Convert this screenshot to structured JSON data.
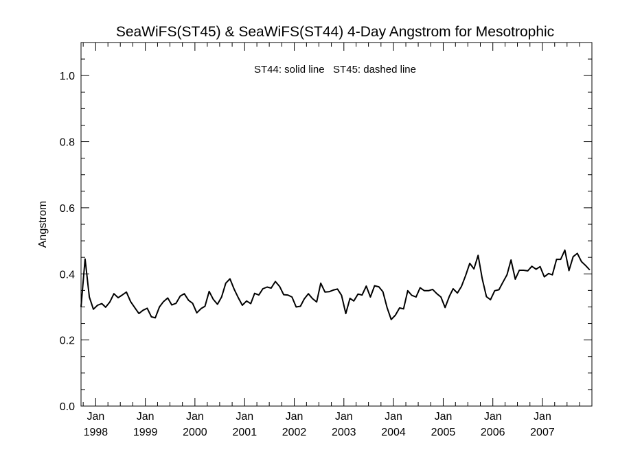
{
  "chart_data": {
    "type": "line",
    "title": "SeaWiFS(ST45) & SeaWiFS(ST44) 4-Day Angstrom for Mesotrophic",
    "annotation": "ST44: solid line   ST45: dashed line",
    "xlabel": "",
    "ylabel": "Angstrom",
    "ylim": [
      0.0,
      1.1
    ],
    "yticks": [
      "0.0",
      "0.2",
      "0.4",
      "0.6",
      "0.8",
      "1.0"
    ],
    "xlim": [
      "1997-09-15",
      "2007-12-31"
    ],
    "xticks": [
      {
        "date": "1998-01-01",
        "month": "Jan",
        "year": "1998"
      },
      {
        "date": "1999-01-01",
        "month": "Jan",
        "year": "1999"
      },
      {
        "date": "2000-01-01",
        "month": "Jan",
        "year": "2000"
      },
      {
        "date": "2001-01-01",
        "month": "Jan",
        "year": "2001"
      },
      {
        "date": "2002-01-01",
        "month": "Jan",
        "year": "2002"
      },
      {
        "date": "2003-01-01",
        "month": "Jan",
        "year": "2003"
      },
      {
        "date": "2004-01-01",
        "month": "Jan",
        "year": "2004"
      },
      {
        "date": "2005-01-01",
        "month": "Jan",
        "year": "2005"
      },
      {
        "date": "2006-01-01",
        "month": "Jan",
        "year": "2006"
      },
      {
        "date": "2007-01-01",
        "month": "Jan",
        "year": "2007"
      }
    ],
    "grid": false,
    "series": [
      {
        "style": "solid",
        "color": "#000000",
        "points": [
          [
            "1997-09-15",
            0.3
          ],
          [
            "1997-10-15",
            0.445
          ],
          [
            "1997-11-15",
            0.33
          ],
          [
            "1997-12-15",
            0.293
          ],
          [
            "1998-01-15",
            0.305
          ],
          [
            "1998-02-15",
            0.31
          ],
          [
            "1998-03-15",
            0.299
          ],
          [
            "1998-04-15",
            0.315
          ],
          [
            "1998-05-15",
            0.34
          ],
          [
            "1998-06-15",
            0.328
          ],
          [
            "1998-07-15",
            0.336
          ],
          [
            "1998-08-15",
            0.345
          ],
          [
            "1998-09-15",
            0.316
          ],
          [
            "1998-10-15",
            0.298
          ],
          [
            "1998-11-15",
            0.28
          ],
          [
            "1998-12-15",
            0.29
          ],
          [
            "1999-01-15",
            0.296
          ],
          [
            "1999-02-15",
            0.27
          ],
          [
            "1999-03-15",
            0.267
          ],
          [
            "1999-04-15",
            0.3
          ],
          [
            "1999-05-15",
            0.316
          ],
          [
            "1999-06-15",
            0.327
          ],
          [
            "1999-07-15",
            0.306
          ],
          [
            "1999-08-15",
            0.311
          ],
          [
            "1999-09-15",
            0.333
          ],
          [
            "1999-10-15",
            0.34
          ],
          [
            "1999-11-15",
            0.32
          ],
          [
            "1999-12-15",
            0.311
          ],
          [
            "2000-01-15",
            0.282
          ],
          [
            "2000-02-15",
            0.295
          ],
          [
            "2000-03-15",
            0.302
          ],
          [
            "2000-04-15",
            0.347
          ],
          [
            "2000-05-15",
            0.323
          ],
          [
            "2000-06-15",
            0.308
          ],
          [
            "2000-07-15",
            0.33
          ],
          [
            "2000-08-15",
            0.372
          ],
          [
            "2000-09-15",
            0.385
          ],
          [
            "2000-10-15",
            0.354
          ],
          [
            "2000-11-15",
            0.328
          ],
          [
            "2000-12-15",
            0.305
          ],
          [
            "2001-01-15",
            0.318
          ],
          [
            "2001-02-15",
            0.31
          ],
          [
            "2001-03-15",
            0.341
          ],
          [
            "2001-04-15",
            0.336
          ],
          [
            "2001-05-15",
            0.355
          ],
          [
            "2001-06-15",
            0.36
          ],
          [
            "2001-07-15",
            0.357
          ],
          [
            "2001-08-15",
            0.377
          ],
          [
            "2001-09-15",
            0.362
          ],
          [
            "2001-10-15",
            0.337
          ],
          [
            "2001-11-15",
            0.336
          ],
          [
            "2001-12-15",
            0.33
          ],
          [
            "2002-01-15",
            0.3
          ],
          [
            "2002-02-15",
            0.302
          ],
          [
            "2002-03-15",
            0.324
          ],
          [
            "2002-04-15",
            0.34
          ],
          [
            "2002-05-15",
            0.325
          ],
          [
            "2002-06-15",
            0.315
          ],
          [
            "2002-07-15",
            0.372
          ],
          [
            "2002-08-15",
            0.345
          ],
          [
            "2002-09-15",
            0.346
          ],
          [
            "2002-10-15",
            0.351
          ],
          [
            "2002-11-15",
            0.354
          ],
          [
            "2002-12-15",
            0.335
          ],
          [
            "2003-01-15",
            0.28
          ],
          [
            "2003-02-15",
            0.326
          ],
          [
            "2003-03-15",
            0.318
          ],
          [
            "2003-04-15",
            0.339
          ],
          [
            "2003-05-15",
            0.336
          ],
          [
            "2003-06-15",
            0.363
          ],
          [
            "2003-07-15",
            0.33
          ],
          [
            "2003-08-15",
            0.364
          ],
          [
            "2003-09-15",
            0.361
          ],
          [
            "2003-10-15",
            0.346
          ],
          [
            "2003-11-15",
            0.298
          ],
          [
            "2003-12-15",
            0.262
          ],
          [
            "2004-01-15",
            0.275
          ],
          [
            "2004-02-15",
            0.297
          ],
          [
            "2004-03-15",
            0.294
          ],
          [
            "2004-04-15",
            0.349
          ],
          [
            "2004-05-15",
            0.335
          ],
          [
            "2004-06-15",
            0.33
          ],
          [
            "2004-07-15",
            0.358
          ],
          [
            "2004-08-15",
            0.349
          ],
          [
            "2004-09-15",
            0.349
          ],
          [
            "2004-10-15",
            0.353
          ],
          [
            "2004-11-15",
            0.34
          ],
          [
            "2004-12-15",
            0.33
          ],
          [
            "2005-01-15",
            0.298
          ],
          [
            "2005-02-15",
            0.332
          ],
          [
            "2005-03-15",
            0.355
          ],
          [
            "2005-04-15",
            0.342
          ],
          [
            "2005-05-15",
            0.362
          ],
          [
            "2005-06-15",
            0.395
          ],
          [
            "2005-07-15",
            0.432
          ],
          [
            "2005-08-15",
            0.415
          ],
          [
            "2005-09-15",
            0.456
          ],
          [
            "2005-10-15",
            0.385
          ],
          [
            "2005-11-15",
            0.331
          ],
          [
            "2005-12-15",
            0.322
          ],
          [
            "2006-01-15",
            0.349
          ],
          [
            "2006-02-15",
            0.352
          ],
          [
            "2006-03-15",
            0.374
          ],
          [
            "2006-04-15",
            0.397
          ],
          [
            "2006-05-15",
            0.442
          ],
          [
            "2006-06-15",
            0.384
          ],
          [
            "2006-07-15",
            0.411
          ],
          [
            "2006-08-15",
            0.411
          ],
          [
            "2006-09-15",
            0.409
          ],
          [
            "2006-10-15",
            0.423
          ],
          [
            "2006-11-15",
            0.414
          ],
          [
            "2006-12-15",
            0.422
          ],
          [
            "2007-01-15",
            0.391
          ],
          [
            "2007-02-15",
            0.401
          ],
          [
            "2007-03-15",
            0.397
          ],
          [
            "2007-04-15",
            0.444
          ],
          [
            "2007-05-15",
            0.444
          ],
          [
            "2007-06-15",
            0.472
          ],
          [
            "2007-07-15",
            0.41
          ],
          [
            "2007-08-15",
            0.452
          ],
          [
            "2007-09-15",
            0.462
          ],
          [
            "2007-10-15",
            0.437
          ],
          [
            "2007-11-15",
            0.425
          ],
          [
            "2007-12-15",
            0.412
          ]
        ]
      }
    ]
  }
}
